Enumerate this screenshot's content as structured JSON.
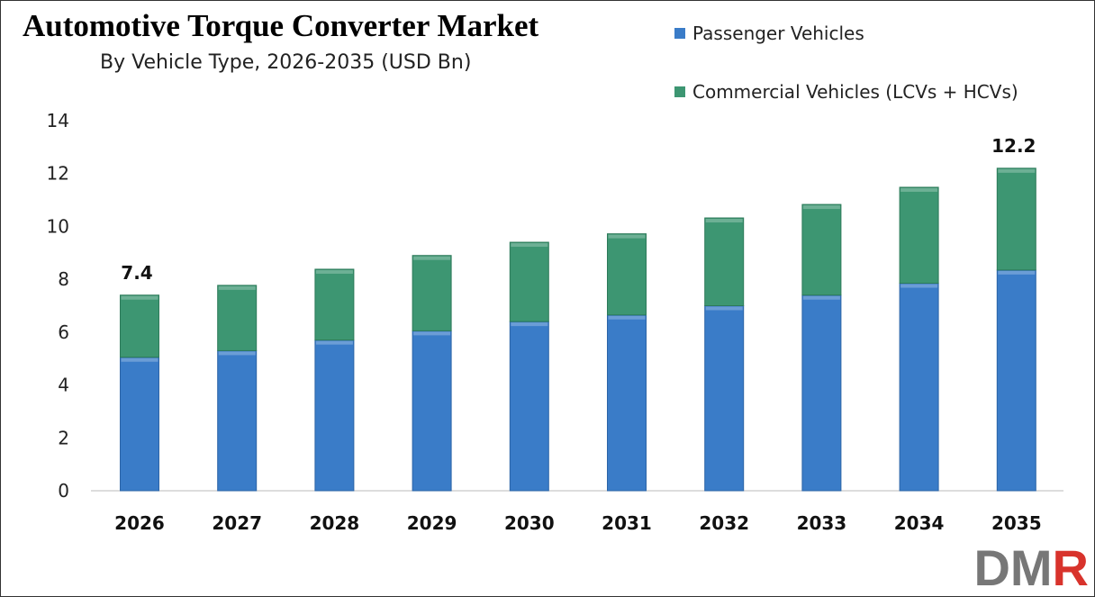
{
  "chart_data": {
    "type": "bar",
    "stacked": true,
    "title": "Automotive Torque Converter Market",
    "subtitle": "By Vehicle Type, 2026-2035 (USD Bn)",
    "categories": [
      "2026",
      "2027",
      "2028",
      "2029",
      "2030",
      "2031",
      "2032",
      "2033",
      "2034",
      "2035"
    ],
    "series": [
      {
        "name": "Passenger Vehicles",
        "color": "#3a7cc8",
        "values": [
          5.05,
          5.3,
          5.7,
          6.05,
          6.4,
          6.65,
          7.0,
          7.4,
          7.85,
          8.35
        ]
      },
      {
        "name": "Commercial Vehicles (LCVs + HCVs)",
        "color": "#3d9672",
        "values": [
          2.35,
          2.47,
          2.68,
          2.85,
          3.0,
          3.07,
          3.32,
          3.43,
          3.63,
          3.85
        ]
      }
    ],
    "data_labels": [
      {
        "category": "2026",
        "text": "7.4"
      },
      {
        "category": "2035",
        "text": "12.2"
      }
    ],
    "ylim": [
      0,
      14
    ],
    "yticks": [
      0,
      2,
      4,
      6,
      8,
      10,
      12,
      14
    ],
    "grid": false,
    "legend": "top-right"
  },
  "logo": {
    "text_gray": "DM",
    "text_red": "R"
  }
}
